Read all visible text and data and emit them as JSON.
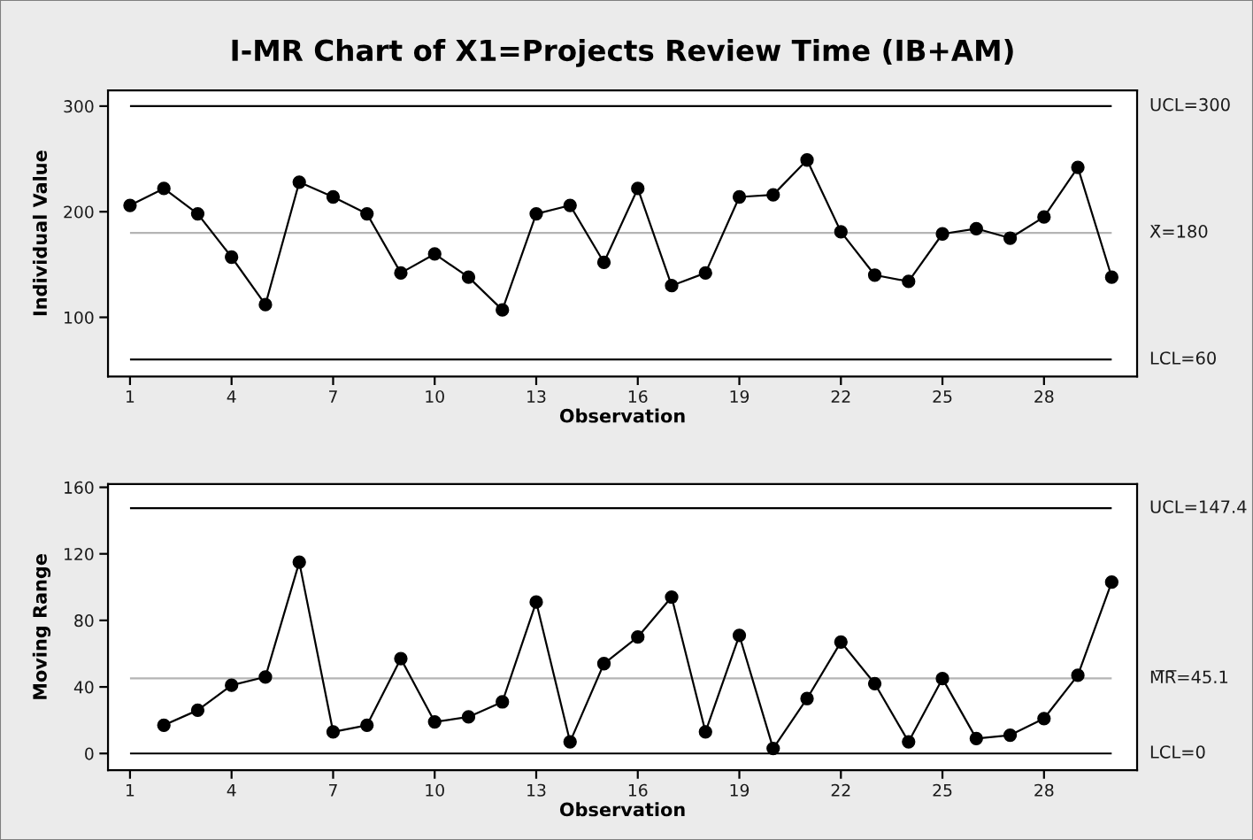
{
  "chart_data": [
    {
      "type": "line",
      "title": "I-MR Chart of X1=Projects Review Time (IB+AM)",
      "xlabel": "Observation",
      "ylabel": "Individual Value",
      "x": [
        1,
        2,
        3,
        4,
        5,
        6,
        7,
        8,
        9,
        10,
        11,
        12,
        13,
        14,
        15,
        16,
        17,
        18,
        19,
        20,
        21,
        22,
        23,
        24,
        25,
        26,
        27,
        28,
        29,
        30
      ],
      "series": [
        {
          "color": "#000000",
          "values": [
            206,
            222,
            198,
            157,
            112,
            228,
            214,
            198,
            142,
            160,
            138,
            107,
            198,
            206,
            152,
            222,
            130,
            142,
            214,
            216,
            249,
            181,
            140,
            134,
            179,
            184,
            175,
            195,
            242,
            138
          ]
        }
      ],
      "xlim": [
        0.35,
        30.75
      ],
      "xticks": [
        1,
        4,
        7,
        10,
        13,
        16,
        19,
        22,
        25,
        28
      ],
      "ylim": [
        44,
        315
      ],
      "yticks": [
        100,
        200,
        300
      ],
      "ref_lines": [
        {
          "axis": "y",
          "value": 300,
          "label": "UCL=300",
          "color": "#000000"
        },
        {
          "axis": "y",
          "value": 180,
          "label": "X̄=180",
          "color": "#b4b4b4"
        },
        {
          "axis": "y",
          "value": 60,
          "label": "LCL=60",
          "color": "#000000"
        }
      ],
      "marker": "circle",
      "line_style": "solid"
    },
    {
      "type": "line",
      "xlabel": "Observation",
      "ylabel": "Moving Range",
      "x": [
        2,
        3,
        4,
        5,
        6,
        7,
        8,
        9,
        10,
        11,
        12,
        13,
        14,
        15,
        16,
        17,
        18,
        19,
        20,
        21,
        22,
        23,
        24,
        25,
        26,
        27,
        28,
        29,
        30
      ],
      "series": [
        {
          "color": "#000000",
          "values": [
            17,
            26,
            41,
            46,
            115,
            13,
            17,
            57,
            19,
            22,
            31,
            91,
            7,
            54,
            70,
            94,
            13,
            71,
            3,
            33,
            67,
            42,
            7,
            45,
            9,
            11,
            21,
            47,
            103
          ]
        }
      ],
      "xlim": [
        0.35,
        30.75
      ],
      "xticks": [
        1,
        4,
        7,
        10,
        13,
        16,
        19,
        22,
        25,
        28
      ],
      "ylim": [
        -10,
        162
      ],
      "yticks": [
        0,
        40,
        80,
        120,
        160
      ],
      "ref_lines": [
        {
          "axis": "y",
          "value": 147.4,
          "label": "UCL=147.4",
          "color": "#000000"
        },
        {
          "axis": "y",
          "value": 45.1,
          "label": "M̅R̅=45.1",
          "color": "#b4b4b4"
        },
        {
          "axis": "y",
          "value": 0,
          "label": "LCL=0",
          "color": "#000000"
        }
      ],
      "marker": "circle",
      "line_style": "solid"
    }
  ]
}
